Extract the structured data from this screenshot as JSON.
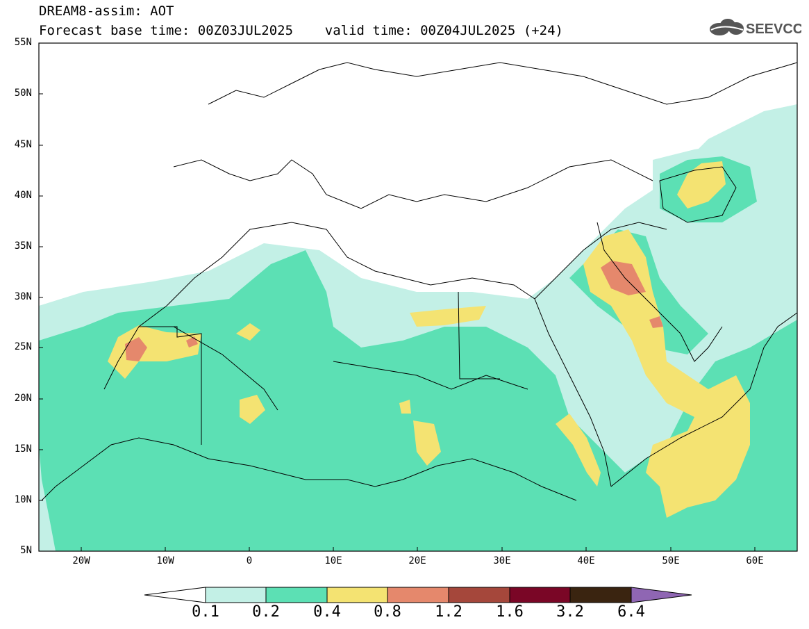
{
  "header": {
    "line1": "DREAM8-assim: AOT",
    "line2": "Forecast base time: 00Z03JUL2025    valid time: 00Z04JUL2025 (+24)"
  },
  "logo": {
    "text": "SEEVCCC",
    "icon": "cloud-logo-icon"
  },
  "map": {
    "variable": "AOT",
    "region": "North Africa, Europe and Middle East",
    "lat_labels": [
      "55N",
      "50N",
      "45N",
      "40N",
      "35N",
      "30N",
      "25N",
      "20N",
      "15N",
      "10N",
      "5N"
    ],
    "lon_labels": [
      "20W",
      "10W",
      "0",
      "10E",
      "20E",
      "30E",
      "40E",
      "50E",
      "60E"
    ]
  },
  "colorbar": {
    "labels": [
      "0.1",
      "0.2",
      "0.4",
      "0.8",
      "1.2",
      "1.6",
      "3.2",
      "6.4"
    ],
    "colors": [
      "#ffffff",
      "#c3f0e6",
      "#5ce0b4",
      "#f4e372",
      "#e5886c",
      "#a5473b",
      "#7a0626",
      "#3a2410",
      "#8f66b3"
    ]
  }
}
